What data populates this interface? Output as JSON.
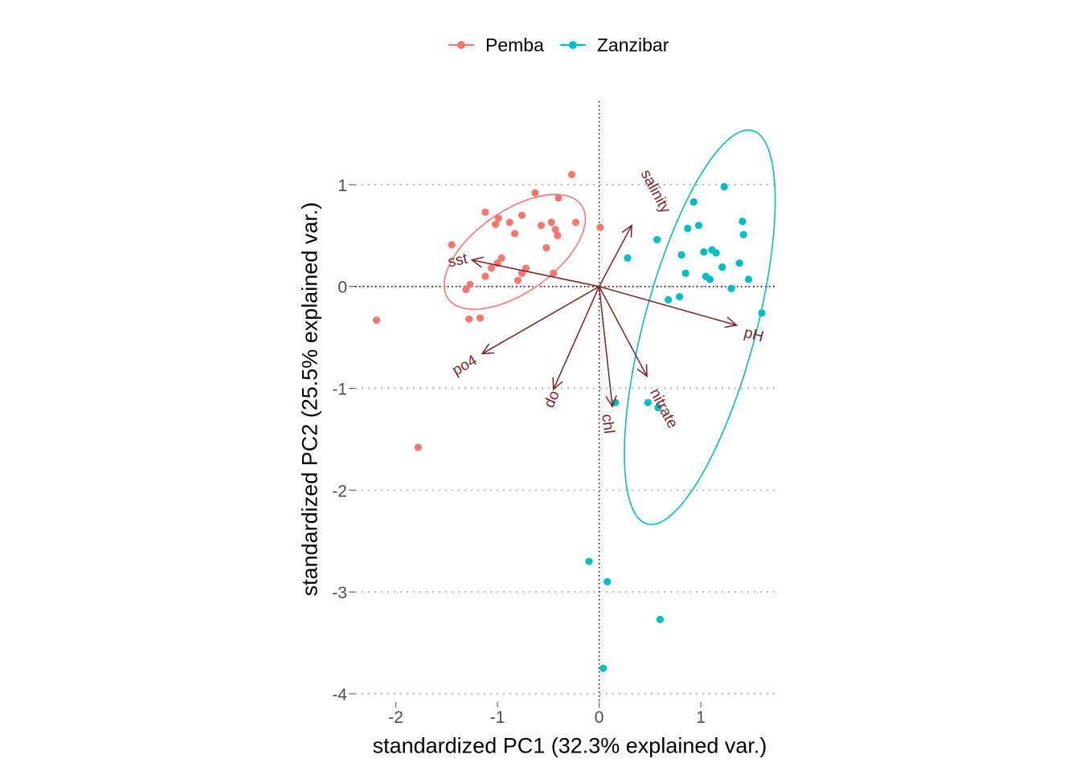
{
  "chart_data": {
    "type": "scatter",
    "xlabel": "standardized PC1 (32.3% explained var.)",
    "ylabel": "standardized PC2 (25.5% explained var.)",
    "xlim": [
      -2.4,
      1.75
    ],
    "ylim": [
      -4.08,
      1.82
    ],
    "x_ticks": [
      -2,
      -1,
      0,
      1
    ],
    "y_ticks": [
      -4,
      -3,
      -2,
      -1,
      0,
      1
    ],
    "x_tick_labels": [
      "-2",
      "-1",
      "0",
      "1"
    ],
    "y_tick_labels": [
      "-4",
      "-3",
      "-2",
      "-1",
      "0",
      "1"
    ],
    "grid": "horizontal dotted",
    "legend_position": "top",
    "series": [
      {
        "name": "Pemba",
        "color": "#F8766D",
        "points": [
          [
            -0.27,
            1.1
          ],
          [
            -0.63,
            0.92
          ],
          [
            -0.4,
            0.87
          ],
          [
            -0.99,
            0.67
          ],
          [
            -1.12,
            0.73
          ],
          [
            -0.76,
            0.7
          ],
          [
            -0.88,
            0.63
          ],
          [
            -1.02,
            0.61
          ],
          [
            -0.47,
            0.63
          ],
          [
            -0.23,
            0.63
          ],
          [
            -0.83,
            0.52
          ],
          [
            -0.57,
            0.6
          ],
          [
            -0.43,
            0.56
          ],
          [
            -0.41,
            0.5
          ],
          [
            0.01,
            0.58
          ],
          [
            -1.45,
            0.41
          ],
          [
            -0.52,
            0.38
          ],
          [
            -0.96,
            0.28
          ],
          [
            -0.72,
            0.18
          ],
          [
            -1.06,
            0.18
          ],
          [
            -1.0,
            0.23
          ],
          [
            -0.76,
            0.13
          ],
          [
            -0.8,
            0.06
          ],
          [
            -1.12,
            0.1
          ],
          [
            -0.45,
            0.13
          ],
          [
            -1.27,
            0.02
          ],
          [
            -1.31,
            -0.03
          ],
          [
            -1.28,
            -0.32
          ],
          [
            -1.17,
            -0.31
          ],
          [
            -2.19,
            -0.33
          ],
          [
            -1.78,
            -1.58
          ]
        ]
      },
      {
        "name": "Zanzibar",
        "color": "#00BFC4",
        "points": [
          [
            1.23,
            0.98
          ],
          [
            0.93,
            0.83
          ],
          [
            1.41,
            0.64
          ],
          [
            0.98,
            0.6
          ],
          [
            0.87,
            0.57
          ],
          [
            1.42,
            0.51
          ],
          [
            0.57,
            0.46
          ],
          [
            1.11,
            0.36
          ],
          [
            1.03,
            0.34
          ],
          [
            1.15,
            0.33
          ],
          [
            0.81,
            0.31
          ],
          [
            0.28,
            0.28
          ],
          [
            1.38,
            0.23
          ],
          [
            1.21,
            0.19
          ],
          [
            0.85,
            0.13
          ],
          [
            1.05,
            0.1
          ],
          [
            1.09,
            0.07
          ],
          [
            1.47,
            0.07
          ],
          [
            1.3,
            -0.02
          ],
          [
            0.79,
            -0.1
          ],
          [
            0.68,
            -0.13
          ],
          [
            1.6,
            -0.26
          ],
          [
            0.16,
            -1.14
          ],
          [
            0.48,
            -1.14
          ],
          [
            0.58,
            -1.19
          ],
          [
            -0.1,
            -2.7
          ],
          [
            0.08,
            -2.9
          ],
          [
            0.6,
            -3.27
          ],
          [
            0.04,
            -3.75
          ]
        ]
      }
    ],
    "ellipses": [
      {
        "group": "Pemba",
        "center": [
          -0.83,
          0.34
        ],
        "semi_axes": [
          0.8,
          0.4
        ],
        "rotation_deg": 35
      },
      {
        "group": "Zanzibar",
        "center": [
          0.99,
          -0.4
        ],
        "semi_axes": [
          2.0,
          0.55
        ],
        "rotation_deg": 75
      }
    ],
    "loadings": [
      {
        "label": "salinity",
        "x": 0.32,
        "y": 0.6,
        "label_x": 0.55,
        "label_y": 0.93,
        "label_angle": 62
      },
      {
        "label": "sst",
        "x": -1.25,
        "y": 0.26,
        "label_x": -1.39,
        "label_y": 0.25,
        "label_angle": -12
      },
      {
        "label": "pH",
        "x": 1.35,
        "y": -0.38,
        "label_x": 1.52,
        "label_y": -0.48,
        "label_angle": 15
      },
      {
        "label": "po4",
        "x": -1.15,
        "y": -0.66,
        "label_x": -1.32,
        "label_y": -0.78,
        "label_angle": -30
      },
      {
        "label": "do",
        "x": -0.45,
        "y": -1.01,
        "label_x": -0.46,
        "label_y": -1.11,
        "label_angle": -66
      },
      {
        "label": "chl",
        "x": 0.13,
        "y": -1.18,
        "label_x": 0.08,
        "label_y": -1.35,
        "label_angle": 83
      },
      {
        "label": "nitrate",
        "x": 0.47,
        "y": -0.88,
        "label_x": 0.63,
        "label_y": -1.2,
        "label_angle": 62
      }
    ]
  }
}
